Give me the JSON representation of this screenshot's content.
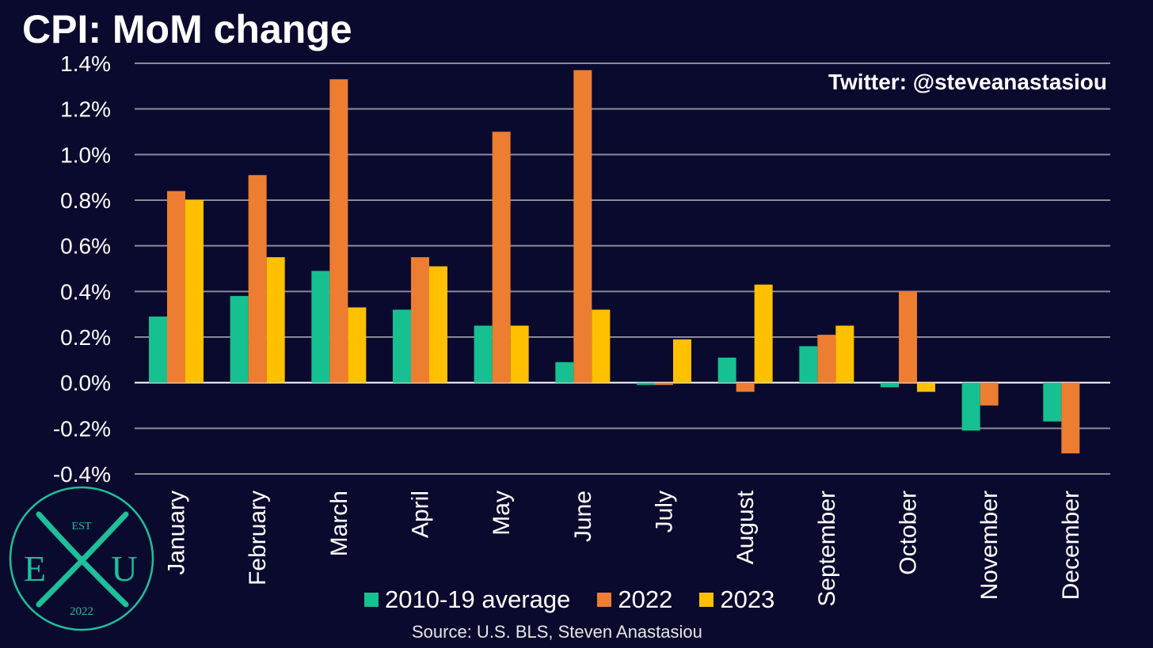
{
  "title": "CPI: MoM change",
  "handle": "Twitter: @steveanastasiou",
  "source": "Source: U.S. BLS, Steven Anastasiou",
  "logo": {
    "top_text": "EST",
    "left_letter": "E",
    "right_letter": "U",
    "bottom_text": "2022",
    "color": "#1ec09a"
  },
  "colors": {
    "background": "#0a0a2e",
    "series_avg": "#16c090",
    "series_2022": "#ed7d31",
    "series_2023": "#ffc000",
    "grid": "#8a8a9a"
  },
  "chart_data": {
    "type": "bar",
    "title": "CPI: MoM change",
    "xlabel": "",
    "ylabel": "",
    "ylim": [
      -0.4,
      1.4
    ],
    "yticks": [
      "1.4%",
      "1.2%",
      "1.0%",
      "0.8%",
      "0.6%",
      "0.4%",
      "0.2%",
      "0.0%",
      "-0.2%",
      "-0.4%"
    ],
    "ytick_values": [
      1.4,
      1.2,
      1.0,
      0.8,
      0.6,
      0.4,
      0.2,
      0.0,
      -0.2,
      -0.4
    ],
    "grid": true,
    "legend_position": "bottom",
    "categories": [
      "January",
      "February",
      "March",
      "April",
      "May",
      "June",
      "July",
      "August",
      "September",
      "October",
      "November",
      "December"
    ],
    "series": [
      {
        "name": "2010-19 average",
        "color": "#16c090",
        "values": [
          0.29,
          0.38,
          0.49,
          0.32,
          0.25,
          0.09,
          -0.01,
          0.11,
          0.16,
          -0.02,
          -0.21,
          -0.17
        ]
      },
      {
        "name": "2022",
        "color": "#ed7d31",
        "values": [
          0.84,
          0.91,
          1.33,
          0.55,
          1.1,
          1.37,
          -0.01,
          -0.04,
          0.21,
          0.4,
          -0.1,
          -0.31
        ]
      },
      {
        "name": "2023",
        "color": "#ffc000",
        "values": [
          0.8,
          0.55,
          0.33,
          0.51,
          0.25,
          0.32,
          0.19,
          0.43,
          0.25,
          -0.04,
          null,
          null
        ]
      }
    ]
  }
}
